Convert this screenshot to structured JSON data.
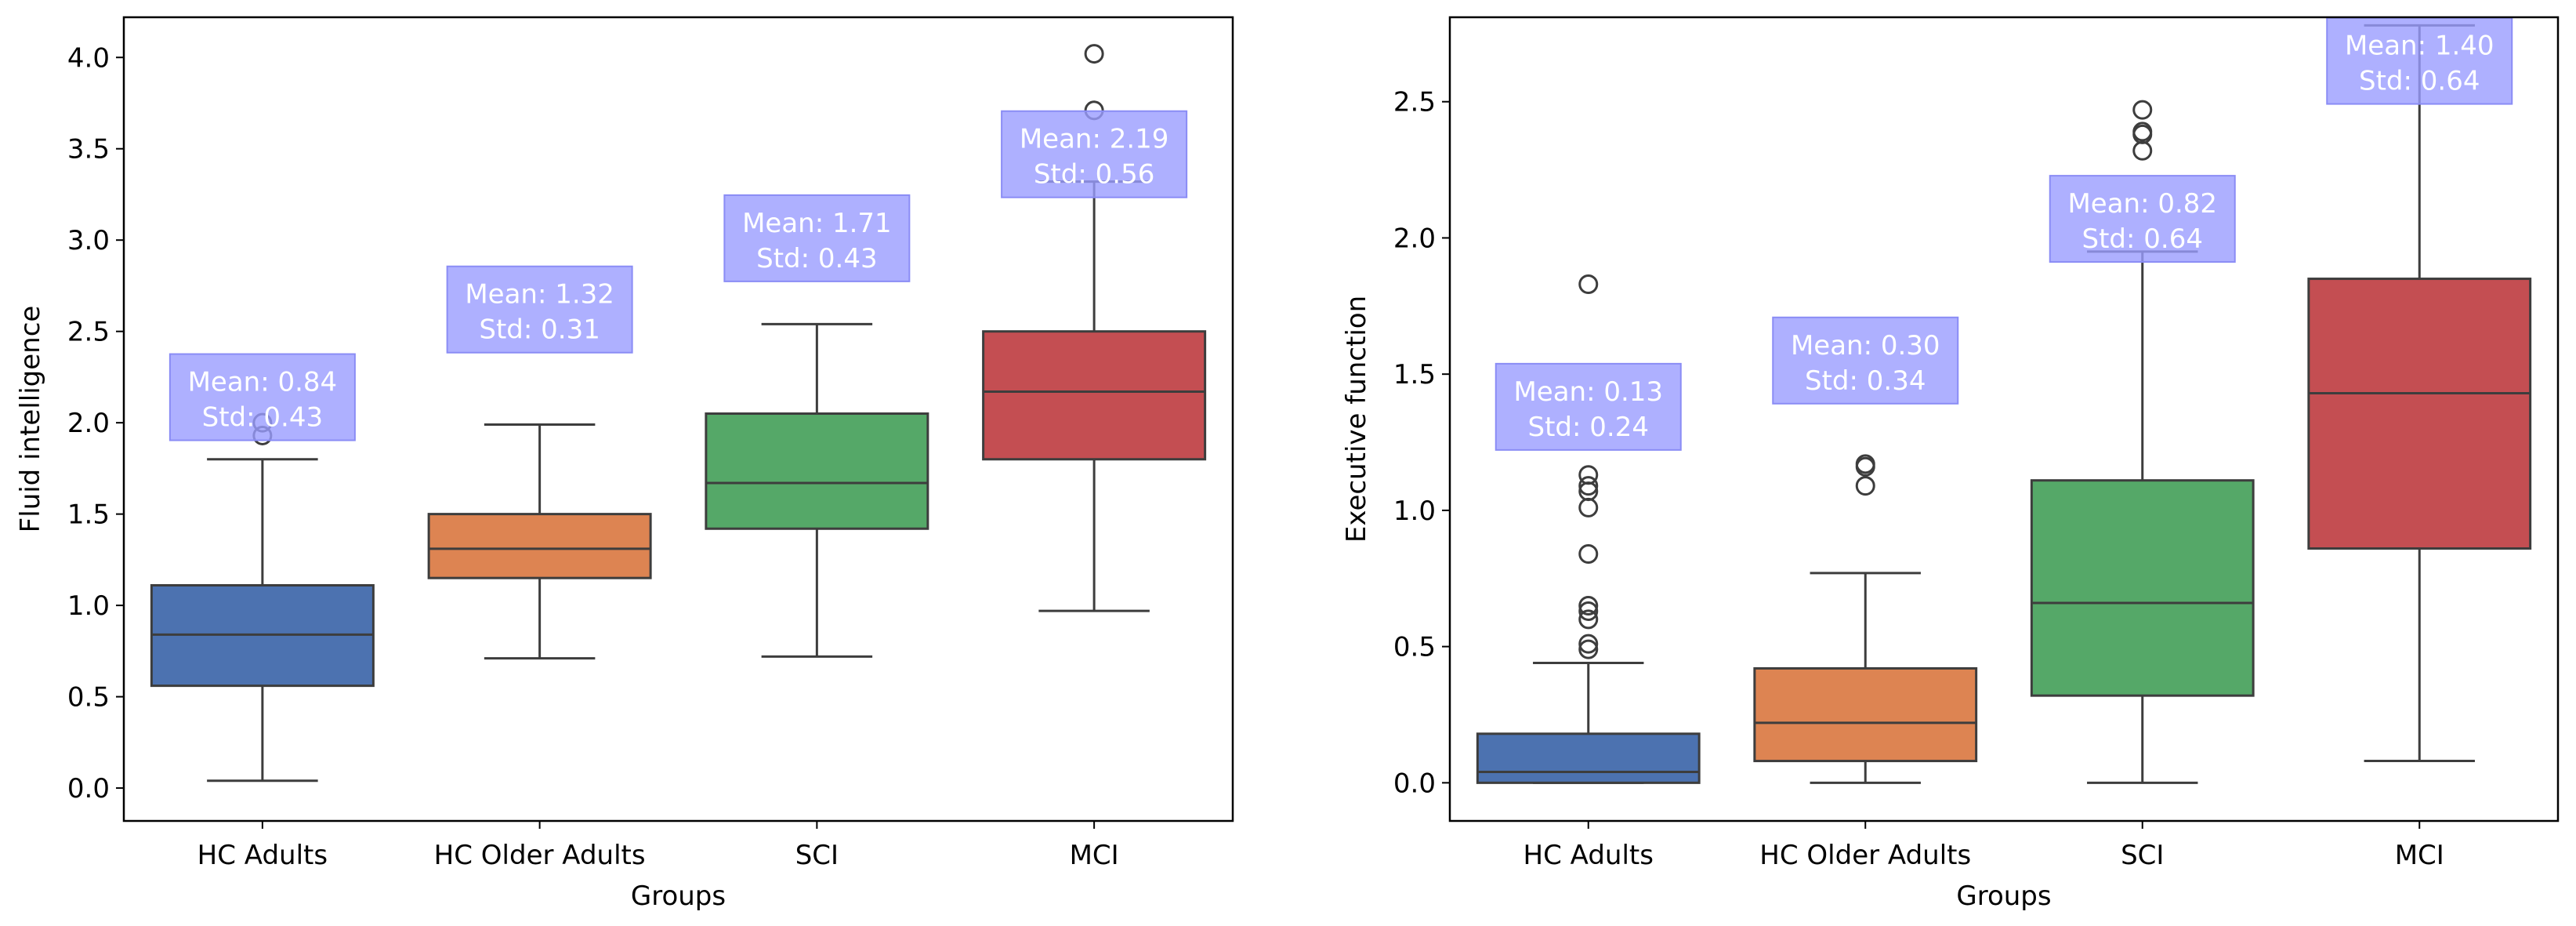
{
  "chart_data": [
    {
      "type": "boxplot",
      "xlabel": "Groups",
      "ylabel": "Fluid intelligence",
      "ylim": [
        -0.18,
        4.22
      ],
      "yticks": [
        "0.0",
        "0.5",
        "1.0",
        "1.5",
        "2.0",
        "2.5",
        "3.0",
        "3.5",
        "4.0"
      ],
      "categories": [
        "HC Adults",
        "HC Older Adults",
        "SCI",
        "MCI"
      ],
      "colors": [
        "#4c72b0",
        "#dd8452",
        "#55a868",
        "#c44e52"
      ],
      "boxes": [
        {
          "min": 0.04,
          "q1": 0.56,
          "median": 0.84,
          "q3": 1.11,
          "max": 1.8,
          "outliers": [
            1.93,
            2.0
          ]
        },
        {
          "min": 0.71,
          "q1": 1.15,
          "median": 1.31,
          "q3": 1.5,
          "max": 1.99,
          "outliers": []
        },
        {
          "min": 0.72,
          "q1": 1.42,
          "median": 1.67,
          "q3": 2.05,
          "max": 2.54,
          "outliers": []
        },
        {
          "min": 0.97,
          "q1": 1.8,
          "median": 2.17,
          "q3": 2.5,
          "max": 3.32,
          "outliers": [
            3.71,
            4.02
          ]
        }
      ],
      "annotations": [
        {
          "mean_text": "Mean: 0.84",
          "std_text": "Std: 0.43",
          "y": 2.14
        },
        {
          "mean_text": "Mean: 1.32",
          "std_text": "Std: 0.31",
          "y": 2.62
        },
        {
          "mean_text": "Mean: 1.71",
          "std_text": "Std: 0.43",
          "y": 3.01
        },
        {
          "mean_text": "Mean: 2.19",
          "std_text": "Std: 0.56",
          "y": 3.47
        }
      ]
    },
    {
      "type": "boxplot",
      "xlabel": "Groups",
      "ylabel": "Executive function",
      "ylim": [
        -0.14,
        2.81
      ],
      "yticks": [
        "0.0",
        "0.5",
        "1.0",
        "1.5",
        "2.0",
        "2.5"
      ],
      "categories": [
        "HC Adults",
        "HC Older Adults",
        "SCI",
        "MCI"
      ],
      "colors": [
        "#4c72b0",
        "#dd8452",
        "#55a868",
        "#c44e52"
      ],
      "boxes": [
        {
          "min": 0.0,
          "q1": 0.0,
          "median": 0.04,
          "q3": 0.18,
          "max": 0.44,
          "outliers": [
            0.49,
            0.51,
            0.6,
            0.63,
            0.65,
            0.84,
            1.01,
            1.07,
            1.09,
            1.13,
            1.83
          ]
        },
        {
          "min": 0.0,
          "q1": 0.08,
          "median": 0.22,
          "q3": 0.42,
          "max": 0.77,
          "outliers": [
            1.09,
            1.16,
            1.17
          ]
        },
        {
          "min": 0.0,
          "q1": 0.32,
          "median": 0.66,
          "q3": 1.11,
          "max": 1.95,
          "outliers": [
            2.32,
            2.38,
            2.39,
            2.47
          ]
        },
        {
          "min": 0.08,
          "q1": 0.86,
          "median": 1.43,
          "q3": 1.85,
          "max": 2.78,
          "outliers": []
        }
      ],
      "annotations": [
        {
          "mean_text": "Mean: 0.13",
          "std_text": "Std: 0.24",
          "y": 1.38
        },
        {
          "mean_text": "Mean: 0.30",
          "std_text": "Std: 0.34",
          "y": 1.55
        },
        {
          "mean_text": "Mean: 0.82",
          "std_text": "Std: 0.64",
          "y": 2.07
        },
        {
          "mean_text": "Mean: 1.40",
          "std_text": "Std: 0.64",
          "y": 2.65
        }
      ]
    }
  ]
}
